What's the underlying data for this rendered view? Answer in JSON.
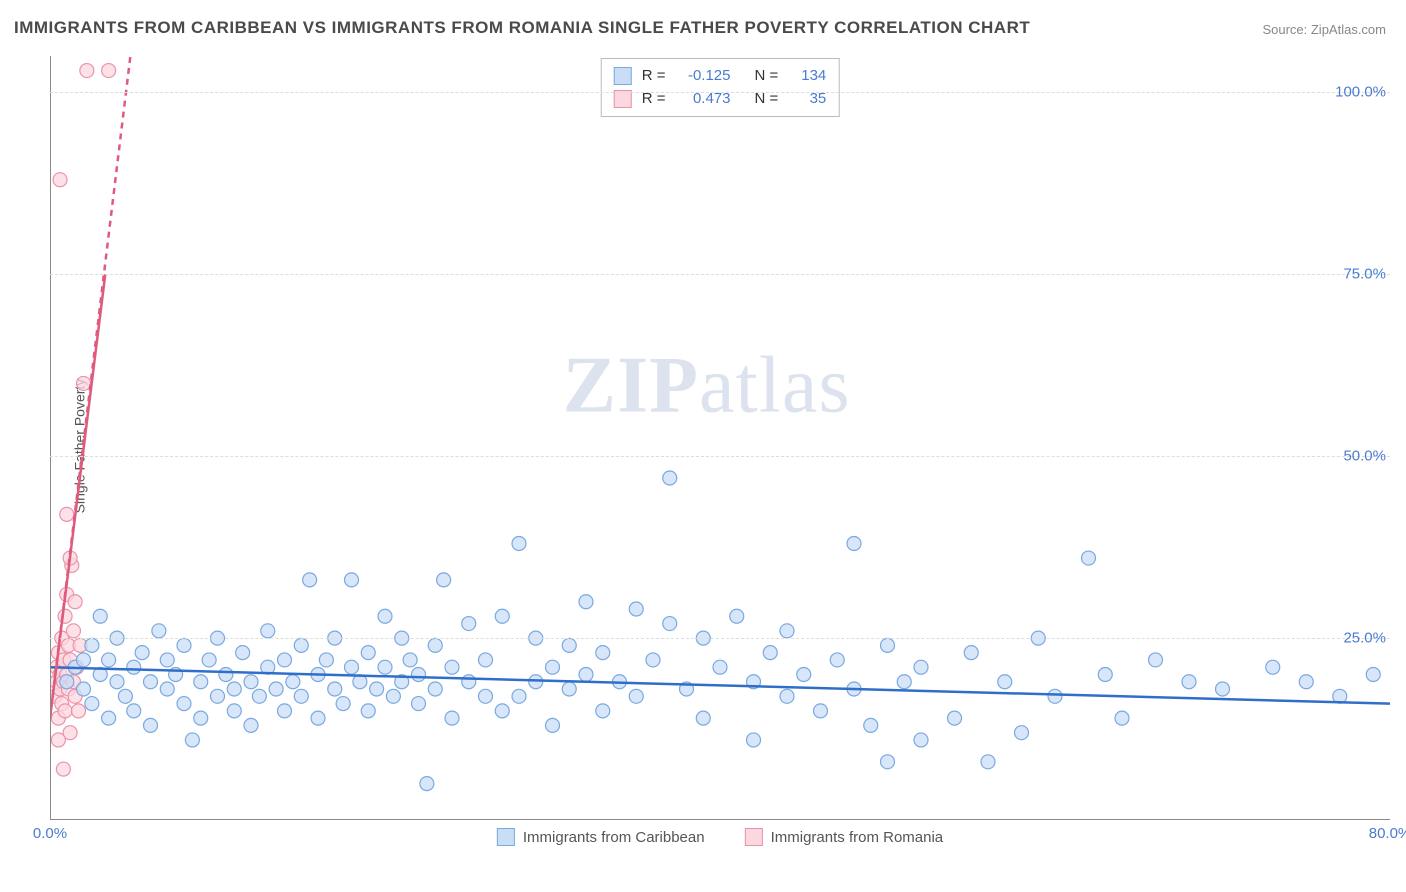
{
  "title": "IMMIGRANTS FROM CARIBBEAN VS IMMIGRANTS FROM ROMANIA SINGLE FATHER POVERTY CORRELATION CHART",
  "source_prefix": "Source: ",
  "source_link": "ZipAtlas.com",
  "y_axis_label": "Single Father Poverty",
  "watermark": "ZIPatlas",
  "chart": {
    "xlim": [
      0,
      80
    ],
    "ylim": [
      0,
      105
    ],
    "x_ticks": [
      {
        "v": 0,
        "label": "0.0%"
      },
      {
        "v": 80,
        "label": "80.0%"
      }
    ],
    "y_ticks": [
      {
        "v": 25,
        "label": "25.0%"
      },
      {
        "v": 50,
        "label": "50.0%"
      },
      {
        "v": 75,
        "label": "75.0%"
      },
      {
        "v": 100,
        "label": "100.0%"
      }
    ],
    "grid_color": "#dddddd",
    "background": "#ffffff",
    "marker_radius": 7,
    "marker_stroke_width": 1.2,
    "series": [
      {
        "name": "Immigrants from Caribbean",
        "fill": "#c9ddf5",
        "stroke": "#7aa9e0",
        "R": "-0.125",
        "N": "134",
        "trend": {
          "x1": 0,
          "y1": 21,
          "x2": 80,
          "y2": 16,
          "color": "#2f6fc9",
          "width": 2.5,
          "dash": null
        },
        "points": [
          [
            1,
            19
          ],
          [
            1.5,
            21
          ],
          [
            2,
            18
          ],
          [
            2,
            22
          ],
          [
            2.5,
            16
          ],
          [
            2.5,
            24
          ],
          [
            3,
            20
          ],
          [
            3,
            28
          ],
          [
            3.5,
            14
          ],
          [
            3.5,
            22
          ],
          [
            4,
            19
          ],
          [
            4,
            25
          ],
          [
            4.5,
            17
          ],
          [
            5,
            21
          ],
          [
            5,
            15
          ],
          [
            5.5,
            23
          ],
          [
            6,
            19
          ],
          [
            6,
            13
          ],
          [
            6.5,
            26
          ],
          [
            7,
            18
          ],
          [
            7,
            22
          ],
          [
            7.5,
            20
          ],
          [
            8,
            16
          ],
          [
            8,
            24
          ],
          [
            8.5,
            11
          ],
          [
            9,
            19
          ],
          [
            9,
            14
          ],
          [
            9.5,
            22
          ],
          [
            10,
            17
          ],
          [
            10,
            25
          ],
          [
            10.5,
            20
          ],
          [
            11,
            15
          ],
          [
            11,
            18
          ],
          [
            11.5,
            23
          ],
          [
            12,
            19
          ],
          [
            12,
            13
          ],
          [
            12.5,
            17
          ],
          [
            13,
            21
          ],
          [
            13,
            26
          ],
          [
            13.5,
            18
          ],
          [
            14,
            22
          ],
          [
            14,
            15
          ],
          [
            14.5,
            19
          ],
          [
            15,
            17
          ],
          [
            15,
            24
          ],
          [
            15.5,
            33
          ],
          [
            16,
            20
          ],
          [
            16,
            14
          ],
          [
            16.5,
            22
          ],
          [
            17,
            18
          ],
          [
            17,
            25
          ],
          [
            17.5,
            16
          ],
          [
            18,
            21
          ],
          [
            18,
            33
          ],
          [
            18.5,
            19
          ],
          [
            19,
            23
          ],
          [
            19,
            15
          ],
          [
            19.5,
            18
          ],
          [
            20,
            21
          ],
          [
            20,
            28
          ],
          [
            20.5,
            17
          ],
          [
            21,
            19
          ],
          [
            21,
            25
          ],
          [
            21.5,
            22
          ],
          [
            22,
            16
          ],
          [
            22,
            20
          ],
          [
            22.5,
            5
          ],
          [
            23,
            18
          ],
          [
            23,
            24
          ],
          [
            23.5,
            33
          ],
          [
            24,
            21
          ],
          [
            24,
            14
          ],
          [
            25,
            19
          ],
          [
            25,
            27
          ],
          [
            26,
            17
          ],
          [
            26,
            22
          ],
          [
            27,
            28
          ],
          [
            27,
            15
          ],
          [
            28,
            17
          ],
          [
            28,
            38
          ],
          [
            29,
            25
          ],
          [
            29,
            19
          ],
          [
            30,
            21
          ],
          [
            30,
            13
          ],
          [
            31,
            24
          ],
          [
            31,
            18
          ],
          [
            32,
            20
          ],
          [
            32,
            30
          ],
          [
            33,
            15
          ],
          [
            33,
            23
          ],
          [
            34,
            19
          ],
          [
            35,
            29
          ],
          [
            35,
            17
          ],
          [
            36,
            22
          ],
          [
            37,
            27
          ],
          [
            37,
            47
          ],
          [
            38,
            18
          ],
          [
            39,
            25
          ],
          [
            39,
            14
          ],
          [
            40,
            21
          ],
          [
            41,
            28
          ],
          [
            42,
            19
          ],
          [
            42,
            11
          ],
          [
            43,
            23
          ],
          [
            44,
            17
          ],
          [
            44,
            26
          ],
          [
            45,
            20
          ],
          [
            46,
            15
          ],
          [
            47,
            22
          ],
          [
            48,
            18
          ],
          [
            48,
            38
          ],
          [
            49,
            13
          ],
          [
            50,
            24
          ],
          [
            50,
            8
          ],
          [
            51,
            19
          ],
          [
            52,
            11
          ],
          [
            52,
            21
          ],
          [
            54,
            14
          ],
          [
            55,
            23
          ],
          [
            56,
            8
          ],
          [
            57,
            19
          ],
          [
            58,
            12
          ],
          [
            59,
            25
          ],
          [
            60,
            17
          ],
          [
            62,
            36
          ],
          [
            63,
            20
          ],
          [
            64,
            14
          ],
          [
            66,
            22
          ],
          [
            68,
            19
          ],
          [
            70,
            18
          ],
          [
            73,
            21
          ],
          [
            75,
            19
          ],
          [
            77,
            17
          ],
          [
            79,
            20
          ]
        ]
      },
      {
        "name": "Immigrants from Romania",
        "fill": "#fcd7df",
        "stroke": "#e993aa",
        "R": "0.473",
        "N": "35",
        "trend": {
          "x1": 0,
          "y1": 14,
          "x2": 4.8,
          "y2": 105,
          "color": "#e05a7d",
          "width": 2.5,
          "dash": "6,5"
        },
        "trend_solid": {
          "x1": 0,
          "y1": 14,
          "x2": 3.3,
          "y2": 75,
          "color": "#e05a7d",
          "width": 2.5
        },
        "points": [
          [
            0.3,
            17
          ],
          [
            0.4,
            19
          ],
          [
            0.4,
            21
          ],
          [
            0.5,
            14
          ],
          [
            0.5,
            23
          ],
          [
            0.6,
            18
          ],
          [
            0.6,
            20
          ],
          [
            0.7,
            16
          ],
          [
            0.7,
            25
          ],
          [
            0.8,
            22
          ],
          [
            0.8,
            19
          ],
          [
            0.9,
            28
          ],
          [
            0.9,
            15
          ],
          [
            1.0,
            20
          ],
          [
            1.0,
            31
          ],
          [
            1.1,
            18
          ],
          [
            1.1,
            24
          ],
          [
            1.2,
            12
          ],
          [
            1.2,
            22
          ],
          [
            1.3,
            35
          ],
          [
            1.4,
            19
          ],
          [
            1.4,
            26
          ],
          [
            1.5,
            17
          ],
          [
            1.5,
            30
          ],
          [
            1.6,
            21
          ],
          [
            1.7,
            15
          ],
          [
            1.8,
            24
          ],
          [
            1.0,
            42
          ],
          [
            1.2,
            36
          ],
          [
            0.5,
            11
          ],
          [
            0.8,
            7
          ],
          [
            2.0,
            60
          ],
          [
            0.6,
            88
          ],
          [
            2.2,
            103
          ],
          [
            3.5,
            103
          ]
        ]
      }
    ]
  },
  "stats_box": {
    "R_label": "R =",
    "N_label": "N ="
  },
  "legend_bottom": [
    {
      "label": "Immigrants from Caribbean",
      "fill": "#c9ddf5",
      "stroke": "#7aa9e0"
    },
    {
      "label": "Immigrants from Romania",
      "fill": "#fcd7df",
      "stroke": "#e993aa"
    }
  ]
}
